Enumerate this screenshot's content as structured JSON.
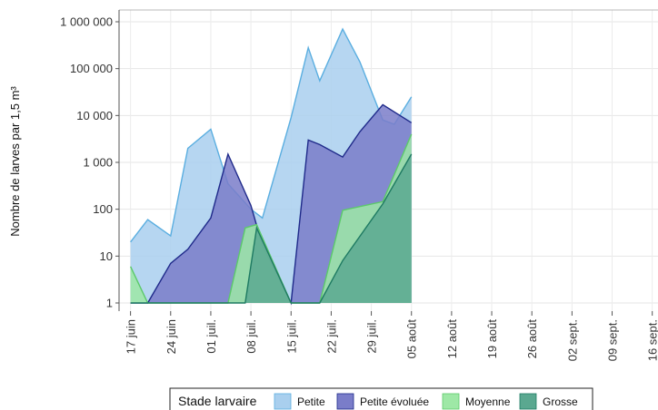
{
  "chart_data": {
    "type": "area",
    "ylabel": "Nombre de larves par 1,5 m³",
    "xlabel": "",
    "y_scale": "log10",
    "y_ticks": [
      1,
      10,
      100,
      1000,
      10000,
      100000,
      1000000
    ],
    "y_tick_labels": [
      "1",
      "10",
      "100",
      "1 000",
      "10 000",
      "100 000",
      "1 000 000"
    ],
    "x_ticks": [
      "2021-06-17",
      "2021-06-24",
      "2021-07-01",
      "2021-07-08",
      "2021-07-15",
      "2021-07-22",
      "2021-07-29",
      "2021-08-05",
      "2021-08-12",
      "2021-08-19",
      "2021-08-26",
      "2021-09-02",
      "2021-09-09",
      "2021-09-16"
    ],
    "x_tick_labels": [
      "17 juin",
      "24 juin",
      "01 juil.",
      "08 juil.",
      "15 juil.",
      "22 juil.",
      "29 juil.",
      "05 août",
      "12 août",
      "19 août",
      "26 août",
      "02 sept.",
      "09 sept.",
      "16 sept."
    ],
    "x_range": [
      "2021-06-15",
      "2021-09-17"
    ],
    "grid": true,
    "legend": {
      "title": "Stade larvaire",
      "position": "bottom"
    },
    "series": [
      {
        "name": "Petite",
        "fill": "#a9cfee",
        "stroke": "#5aaee0",
        "points": [
          [
            "2021-06-17",
            20
          ],
          [
            "2021-06-20",
            60
          ],
          [
            "2021-06-24",
            27
          ],
          [
            "2021-06-27",
            2000
          ],
          [
            "2021-07-01",
            5100
          ],
          [
            "2021-07-04",
            350
          ],
          [
            "2021-07-08",
            100
          ],
          [
            "2021-07-10",
            65
          ],
          [
            "2021-07-15",
            9000
          ],
          [
            "2021-07-18",
            280000
          ],
          [
            "2021-07-20",
            55000
          ],
          [
            "2021-07-24",
            700000
          ],
          [
            "2021-07-27",
            140000
          ],
          [
            "2021-07-31",
            8000
          ],
          [
            "2021-08-02",
            6500
          ],
          [
            "2021-08-05",
            25000
          ]
        ]
      },
      {
        "name": "Petite évoluée",
        "fill": "#7a7dc9",
        "stroke": "#1f2a8a",
        "points": [
          [
            "2021-06-17",
            1
          ],
          [
            "2021-06-20",
            1
          ],
          [
            "2021-06-24",
            7
          ],
          [
            "2021-06-27",
            14
          ],
          [
            "2021-07-01",
            65
          ],
          [
            "2021-07-04",
            1500
          ],
          [
            "2021-07-08",
            120
          ],
          [
            "2021-07-10",
            17
          ],
          [
            "2021-07-15",
            1
          ],
          [
            "2021-07-18",
            3000
          ],
          [
            "2021-07-20",
            2400
          ],
          [
            "2021-07-24",
            1300
          ],
          [
            "2021-07-27",
            4500
          ],
          [
            "2021-07-31",
            17000
          ],
          [
            "2021-08-05",
            7000
          ]
        ]
      },
      {
        "name": "Moyenne",
        "fill": "#9ee8a6",
        "stroke": "#5cc96a",
        "points": [
          [
            "2021-06-17",
            6
          ],
          [
            "2021-06-20",
            1
          ],
          [
            "2021-07-04",
            1
          ],
          [
            "2021-07-07",
            40
          ],
          [
            "2021-07-09",
            47
          ],
          [
            "2021-07-15",
            1
          ],
          [
            "2021-07-20",
            1
          ],
          [
            "2021-07-24",
            95
          ],
          [
            "2021-07-31",
            145
          ],
          [
            "2021-08-05",
            4000
          ]
        ]
      },
      {
        "name": "Grosse",
        "fill": "#5aa890",
        "stroke": "#1e7a62",
        "points": [
          [
            "2021-06-17",
            1
          ],
          [
            "2021-07-07",
            1
          ],
          [
            "2021-07-09",
            40
          ],
          [
            "2021-07-15",
            1
          ],
          [
            "2021-07-20",
            1
          ],
          [
            "2021-07-24",
            8
          ],
          [
            "2021-07-31",
            130
          ],
          [
            "2021-08-05",
            1500
          ]
        ]
      }
    ]
  }
}
